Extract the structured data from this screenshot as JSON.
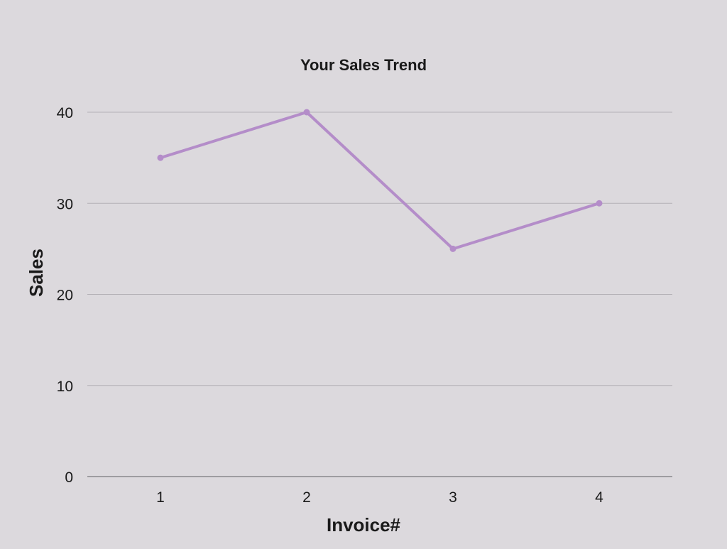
{
  "chart_data": {
    "type": "line",
    "title": "Your Sales Trend",
    "xlabel": "Invoice#",
    "ylabel": "Sales",
    "categories": [
      "1",
      "2",
      "3",
      "4"
    ],
    "series": [
      {
        "values": [
          35,
          40,
          25,
          30
        ]
      }
    ],
    "ylim": [
      0,
      40
    ],
    "yticks": [
      "0",
      "10",
      "20",
      "30",
      "40"
    ],
    "grid": true,
    "legend": "none",
    "colors": {
      "background": "#dcd9dd",
      "line": "#b48dc9",
      "grid": "#b4b1b6",
      "axis": "#8a878c"
    }
  }
}
